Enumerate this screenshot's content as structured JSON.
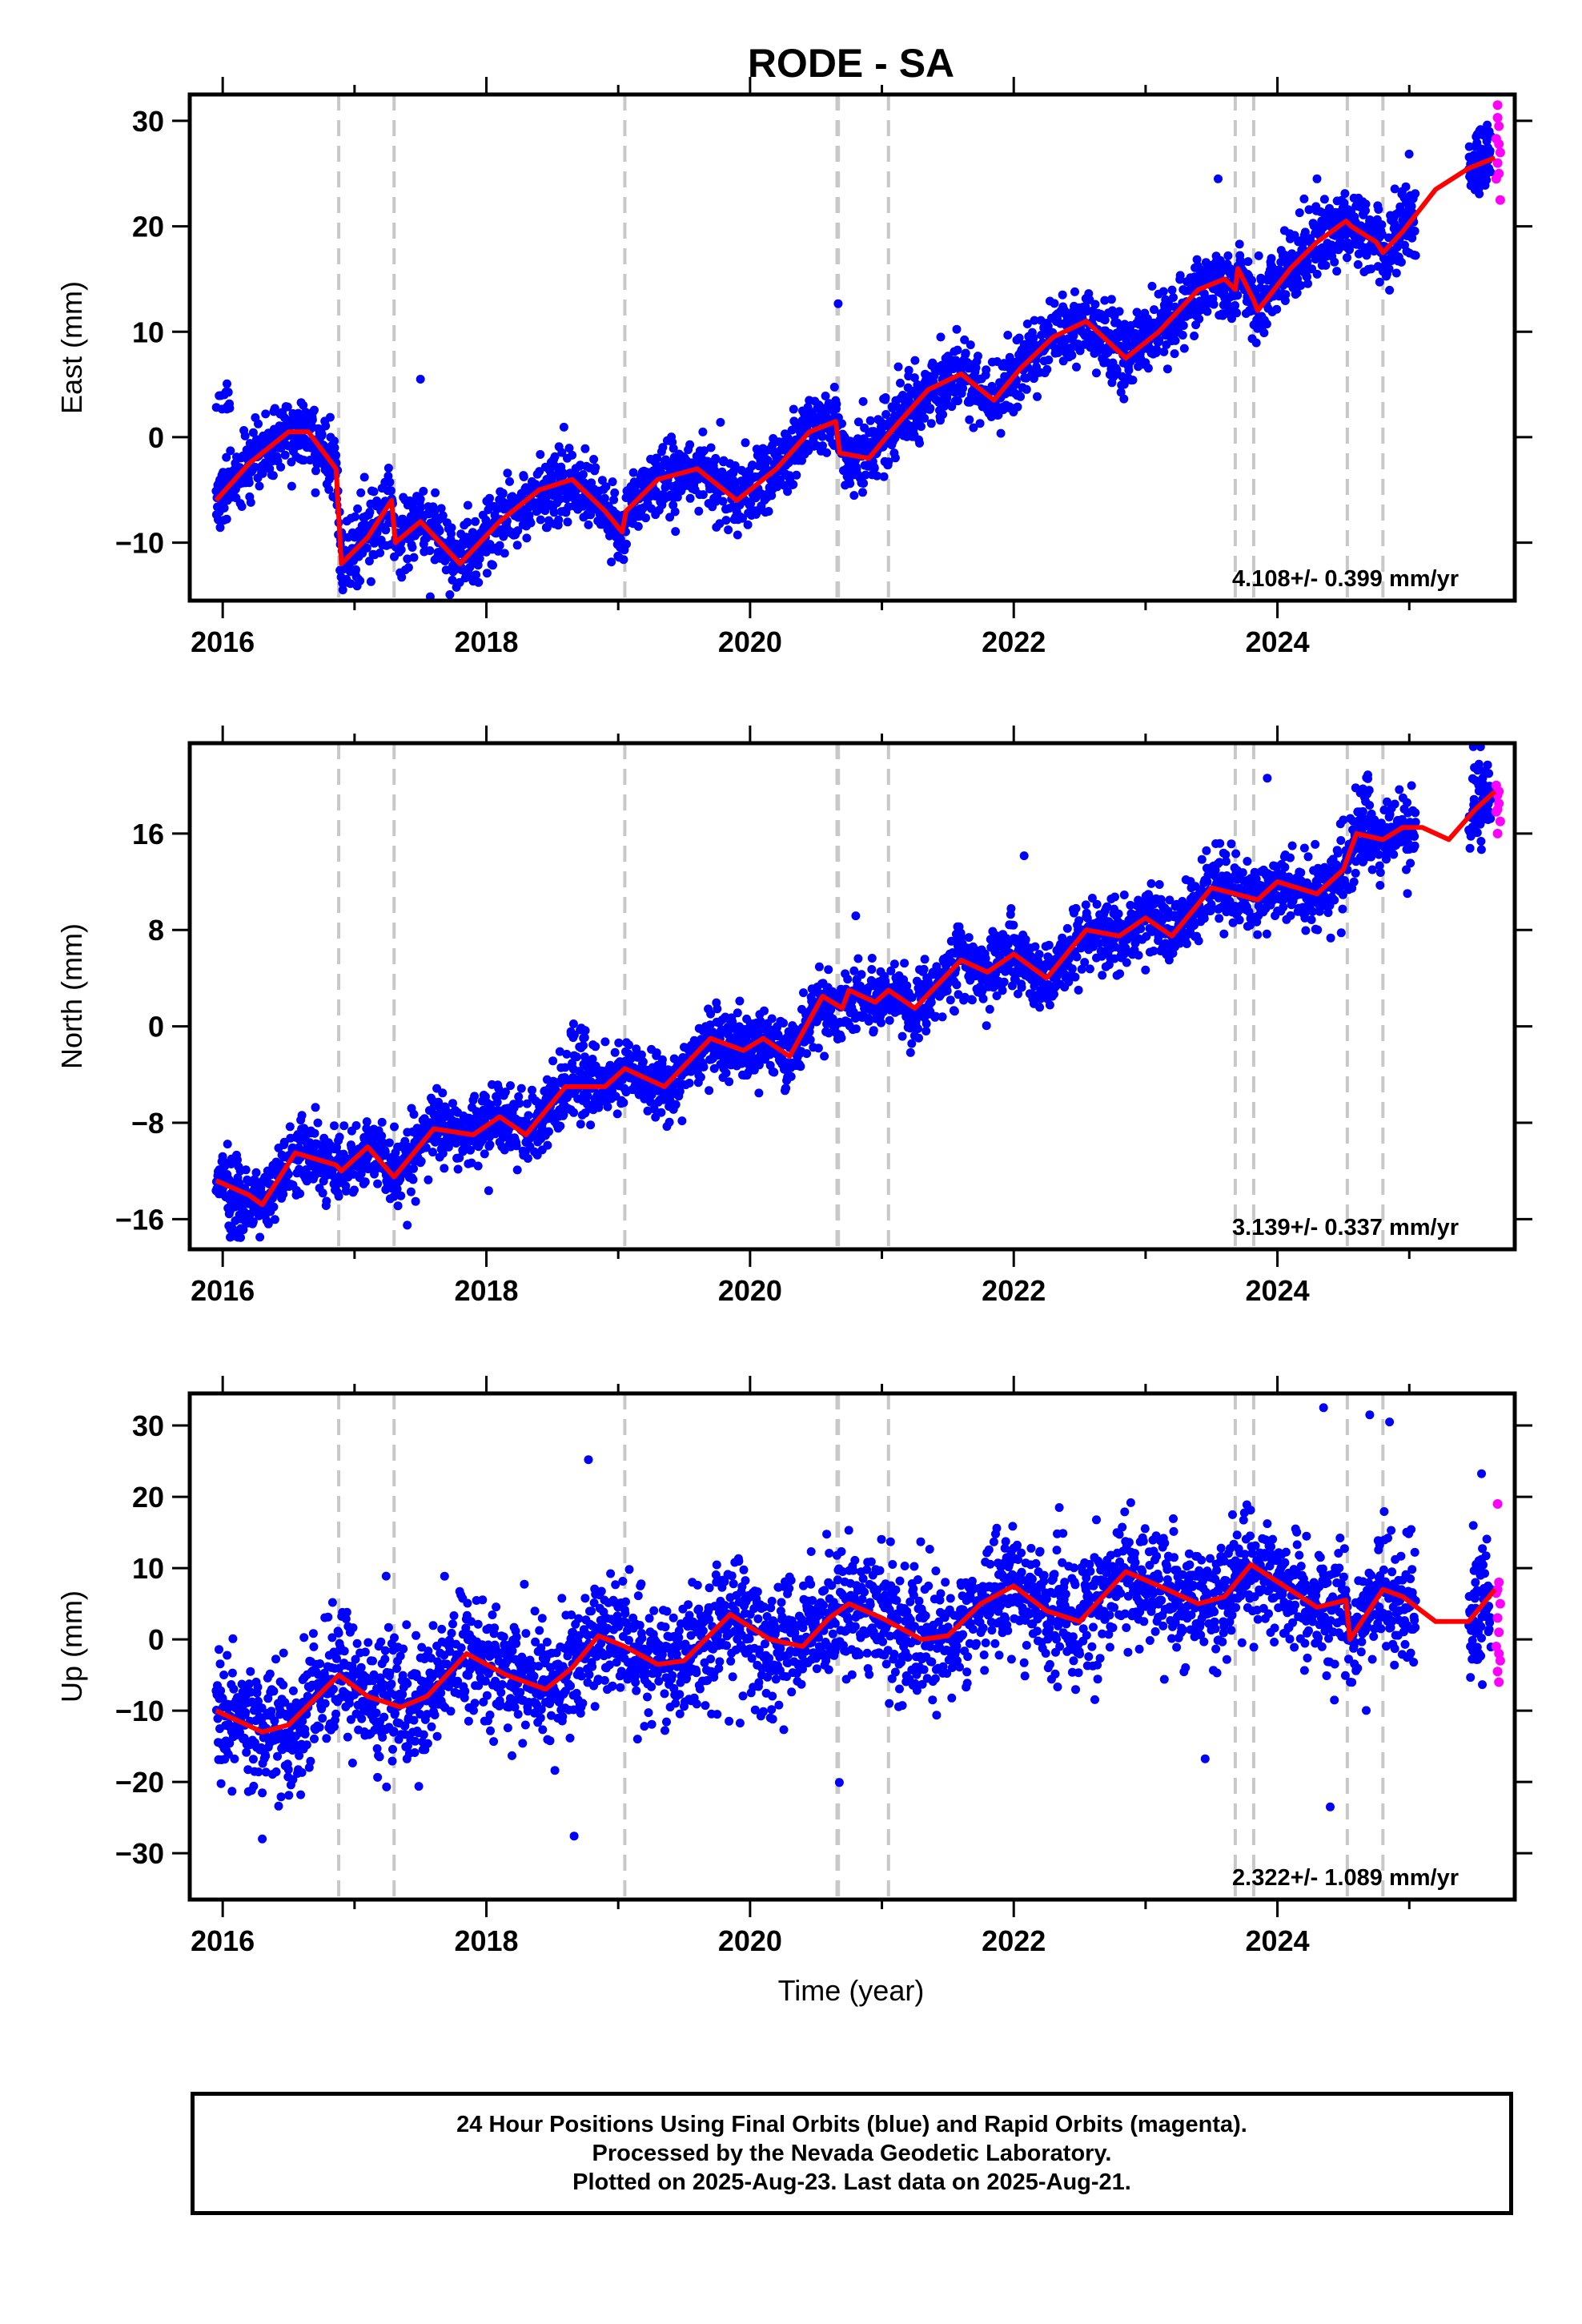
{
  "chart_data": {
    "type": "scatter",
    "title": "RODE - SA",
    "xlabel": "Time (year)",
    "xlim": [
      2015.75,
      2025.8
    ],
    "x_ticks": [
      2016,
      2018,
      2020,
      2022,
      2024
    ],
    "x_tick_labels": [
      "2016",
      "2018",
      "2020",
      "2022",
      "2024"
    ],
    "event_lines": [
      2016.88,
      2017.3,
      2019.05,
      2020.66,
      2020.67,
      2021.05,
      2023.68,
      2023.82,
      2024.53,
      2024.8
    ],
    "colors": {
      "final": "#0000ff",
      "rapid": "#ff00ff",
      "model": "#ff0000",
      "events": "#c8c8c8"
    },
    "legend": "none",
    "grid": false,
    "panels": [
      {
        "id": "east",
        "ylabel": "East (mm)",
        "ylim": [
          -15.5,
          32.5
        ],
        "yticks": [
          -10,
          0,
          10,
          20,
          30
        ],
        "ytick_labels": [
          "−10",
          "0",
          "10",
          "20",
          "30"
        ],
        "rate_label": "4.108+/- 0.399 mm/yr",
        "trend_anchors": [
          [
            2015.95,
            -6
          ],
          [
            2016.2,
            -2.5
          ],
          [
            2016.5,
            0.5
          ],
          [
            2016.65,
            0.5
          ],
          [
            2016.86,
            -3
          ],
          [
            2016.9,
            -12
          ],
          [
            2017.1,
            -9.5
          ],
          [
            2017.28,
            -6
          ],
          [
            2017.31,
            -10
          ],
          [
            2017.5,
            -8
          ],
          [
            2017.8,
            -12
          ],
          [
            2018.1,
            -8
          ],
          [
            2018.4,
            -5
          ],
          [
            2018.65,
            -4
          ],
          [
            2018.9,
            -7
          ],
          [
            2019.03,
            -9
          ],
          [
            2019.06,
            -7
          ],
          [
            2019.3,
            -4
          ],
          [
            2019.6,
            -3
          ],
          [
            2019.9,
            -6
          ],
          [
            2020.2,
            -3
          ],
          [
            2020.45,
            0.5
          ],
          [
            2020.65,
            1.5
          ],
          [
            2020.68,
            -1.5
          ],
          [
            2020.9,
            -2
          ],
          [
            2021.1,
            1
          ],
          [
            2021.35,
            4.5
          ],
          [
            2021.6,
            6
          ],
          [
            2021.85,
            3.5
          ],
          [
            2022.05,
            6.5
          ],
          [
            2022.3,
            9.5
          ],
          [
            2022.55,
            11
          ],
          [
            2022.85,
            7.5
          ],
          [
            2023.1,
            10
          ],
          [
            2023.4,
            14
          ],
          [
            2023.6,
            15
          ],
          [
            2023.68,
            14
          ],
          [
            2023.7,
            16
          ],
          [
            2023.82,
            13
          ],
          [
            2023.85,
            12
          ],
          [
            2024.1,
            16
          ],
          [
            2024.3,
            18.5
          ],
          [
            2024.52,
            20.5
          ],
          [
            2024.56,
            20
          ],
          [
            2024.75,
            18.5
          ],
          [
            2024.8,
            17.5
          ],
          [
            2024.95,
            19.5
          ],
          [
            2025.2,
            23.5
          ],
          [
            2025.45,
            25.5
          ],
          [
            2025.65,
            26.5
          ]
        ],
        "noise_mm": 1.6,
        "data_clusters": [
          [
            2016.0,
            4.0,
            0.8
          ],
          [
            2017.5,
            5.5,
            0.0
          ],
          [
            2023.55,
            24.5,
            0.0
          ],
          [
            2024.3,
            24.5,
            0.0
          ],
          [
            2025.5,
            26.5,
            1.5
          ]
        ],
        "rapid_points": [
          [
            2025.67,
            31.5
          ],
          [
            2025.68,
            29.5
          ],
          [
            2025.66,
            28.3
          ],
          [
            2025.69,
            27.0
          ],
          [
            2025.67,
            26.0
          ],
          [
            2025.68,
            25.0
          ],
          [
            2025.66,
            24.5
          ],
          [
            2025.69,
            22.5
          ],
          [
            2025.67,
            30.3
          ],
          [
            2025.68,
            27.8
          ]
        ]
      },
      {
        "id": "north",
        "ylabel": "North (mm)",
        "ylim": [
          -18.5,
          23.5
        ],
        "yticks": [
          -16,
          -8,
          0,
          8,
          16
        ],
        "ytick_labels": [
          "−16",
          "−8",
          "0",
          "8",
          "16"
        ],
        "rate_label": "3.139+/- 0.337 mm/yr",
        "trend_anchors": [
          [
            2015.95,
            -12.8
          ],
          [
            2016.2,
            -14
          ],
          [
            2016.3,
            -14.8
          ],
          [
            2016.55,
            -10.5
          ],
          [
            2016.86,
            -11.5
          ],
          [
            2016.9,
            -12
          ],
          [
            2017.1,
            -10
          ],
          [
            2017.3,
            -12.5
          ],
          [
            2017.6,
            -8.5
          ],
          [
            2017.9,
            -9
          ],
          [
            2018.1,
            -7.5
          ],
          [
            2018.3,
            -9
          ],
          [
            2018.6,
            -5
          ],
          [
            2018.9,
            -5
          ],
          [
            2019.05,
            -3.5
          ],
          [
            2019.35,
            -5
          ],
          [
            2019.7,
            -1
          ],
          [
            2019.95,
            -2
          ],
          [
            2020.1,
            -1
          ],
          [
            2020.3,
            -2.5
          ],
          [
            2020.55,
            2.5
          ],
          [
            2020.7,
            1.5
          ],
          [
            2020.75,
            3
          ],
          [
            2020.95,
            2
          ],
          [
            2021.05,
            3
          ],
          [
            2021.25,
            1.5
          ],
          [
            2021.6,
            5.5
          ],
          [
            2021.8,
            4.5
          ],
          [
            2022.0,
            6
          ],
          [
            2022.25,
            4
          ],
          [
            2022.55,
            8
          ],
          [
            2022.8,
            7.5
          ],
          [
            2023.0,
            9
          ],
          [
            2023.2,
            7.5
          ],
          [
            2023.5,
            11.5
          ],
          [
            2023.68,
            11
          ],
          [
            2023.85,
            10.5
          ],
          [
            2024.0,
            12
          ],
          [
            2024.3,
            11
          ],
          [
            2024.5,
            13
          ],
          [
            2024.6,
            16
          ],
          [
            2024.8,
            15.5
          ],
          [
            2024.95,
            16.5
          ],
          [
            2025.1,
            16.5
          ],
          [
            2025.3,
            15.5
          ],
          [
            2025.5,
            18
          ],
          [
            2025.65,
            19.5
          ]
        ],
        "noise_mm": 1.4,
        "data_clusters": [
          [
            2016.1,
            -17.0,
            0.5
          ],
          [
            2017.4,
            -16.5,
            0.0
          ],
          [
            2018.7,
            -0.5,
            0.5
          ],
          [
            2024.65,
            20.0,
            1.0
          ],
          [
            2025.52,
            21.5,
            1.5
          ]
        ],
        "rapid_points": [
          [
            2025.66,
            20.0
          ],
          [
            2025.67,
            19.2
          ],
          [
            2025.68,
            18.5
          ],
          [
            2025.66,
            17.8
          ],
          [
            2025.69,
            17.0
          ],
          [
            2025.67,
            16.0
          ],
          [
            2025.68,
            19.5
          ],
          [
            2025.67,
            18.0
          ]
        ]
      },
      {
        "id": "up",
        "ylabel": "Up (mm)",
        "ylim": [
          -36.5,
          34.5
        ],
        "yticks": [
          -30,
          -20,
          -10,
          0,
          10,
          20,
          30
        ],
        "ytick_labels": [
          "−30",
          "−20",
          "−10",
          "0",
          "10",
          "20",
          "30"
        ],
        "rate_label": "2.322+/- 1.089 mm/yr",
        "trend_anchors": [
          [
            2015.95,
            -10
          ],
          [
            2016.3,
            -13
          ],
          [
            2016.5,
            -12
          ],
          [
            2016.88,
            -5
          ],
          [
            2017.1,
            -8
          ],
          [
            2017.35,
            -9.5
          ],
          [
            2017.55,
            -8
          ],
          [
            2017.85,
            -2
          ],
          [
            2018.15,
            -5
          ],
          [
            2018.45,
            -7
          ],
          [
            2018.65,
            -4
          ],
          [
            2018.85,
            0.5
          ],
          [
            2019.05,
            -1
          ],
          [
            2019.3,
            -3.5
          ],
          [
            2019.5,
            -3
          ],
          [
            2019.85,
            3.5
          ],
          [
            2020.15,
            0
          ],
          [
            2020.4,
            -1
          ],
          [
            2020.6,
            3
          ],
          [
            2020.75,
            5
          ],
          [
            2021.0,
            3
          ],
          [
            2021.3,
            0
          ],
          [
            2021.5,
            0.5
          ],
          [
            2021.75,
            5
          ],
          [
            2022.0,
            7.5
          ],
          [
            2022.25,
            4
          ],
          [
            2022.5,
            2.5
          ],
          [
            2022.85,
            9.5
          ],
          [
            2023.1,
            7.5
          ],
          [
            2023.4,
            5
          ],
          [
            2023.6,
            6
          ],
          [
            2023.8,
            10.5
          ],
          [
            2024.05,
            7.5
          ],
          [
            2024.3,
            4.5
          ],
          [
            2024.52,
            5.5
          ],
          [
            2024.55,
            0
          ],
          [
            2024.8,
            7
          ],
          [
            2024.95,
            6
          ],
          [
            2025.2,
            2.5
          ],
          [
            2025.45,
            2.5
          ],
          [
            2025.65,
            7
          ]
        ],
        "noise_mm": 4.2,
        "data_clusters": [
          [
            2016.3,
            -28.0,
            0.0
          ],
          [
            2024.4,
            -23.5,
            0.0
          ],
          [
            2024.35,
            32.5,
            0.0
          ],
          [
            2024.7,
            31.5,
            0.0
          ],
          [
            2024.85,
            30.5,
            0.0
          ],
          [
            2025.5,
            8.0,
            6.0
          ]
        ],
        "rapid_points": [
          [
            2025.67,
            19.0
          ],
          [
            2025.68,
            8.0
          ],
          [
            2025.66,
            6.5
          ],
          [
            2025.69,
            5.0
          ],
          [
            2025.67,
            3.0
          ],
          [
            2025.68,
            1.0
          ],
          [
            2025.66,
            -1.0
          ],
          [
            2025.69,
            -3.0
          ],
          [
            2025.67,
            -4.5
          ],
          [
            2025.68,
            -6.0
          ],
          [
            2025.67,
            7.0
          ],
          [
            2025.68,
            -2.0
          ]
        ]
      }
    ]
  },
  "footer": {
    "line1": "24 Hour Positions Using Final Orbits (blue) and Rapid Orbits (magenta).",
    "line2": "Processed by the Nevada Geodetic Laboratory.",
    "line3": "Plotted on 2025-Aug-23. Last data on 2025-Aug-21."
  }
}
